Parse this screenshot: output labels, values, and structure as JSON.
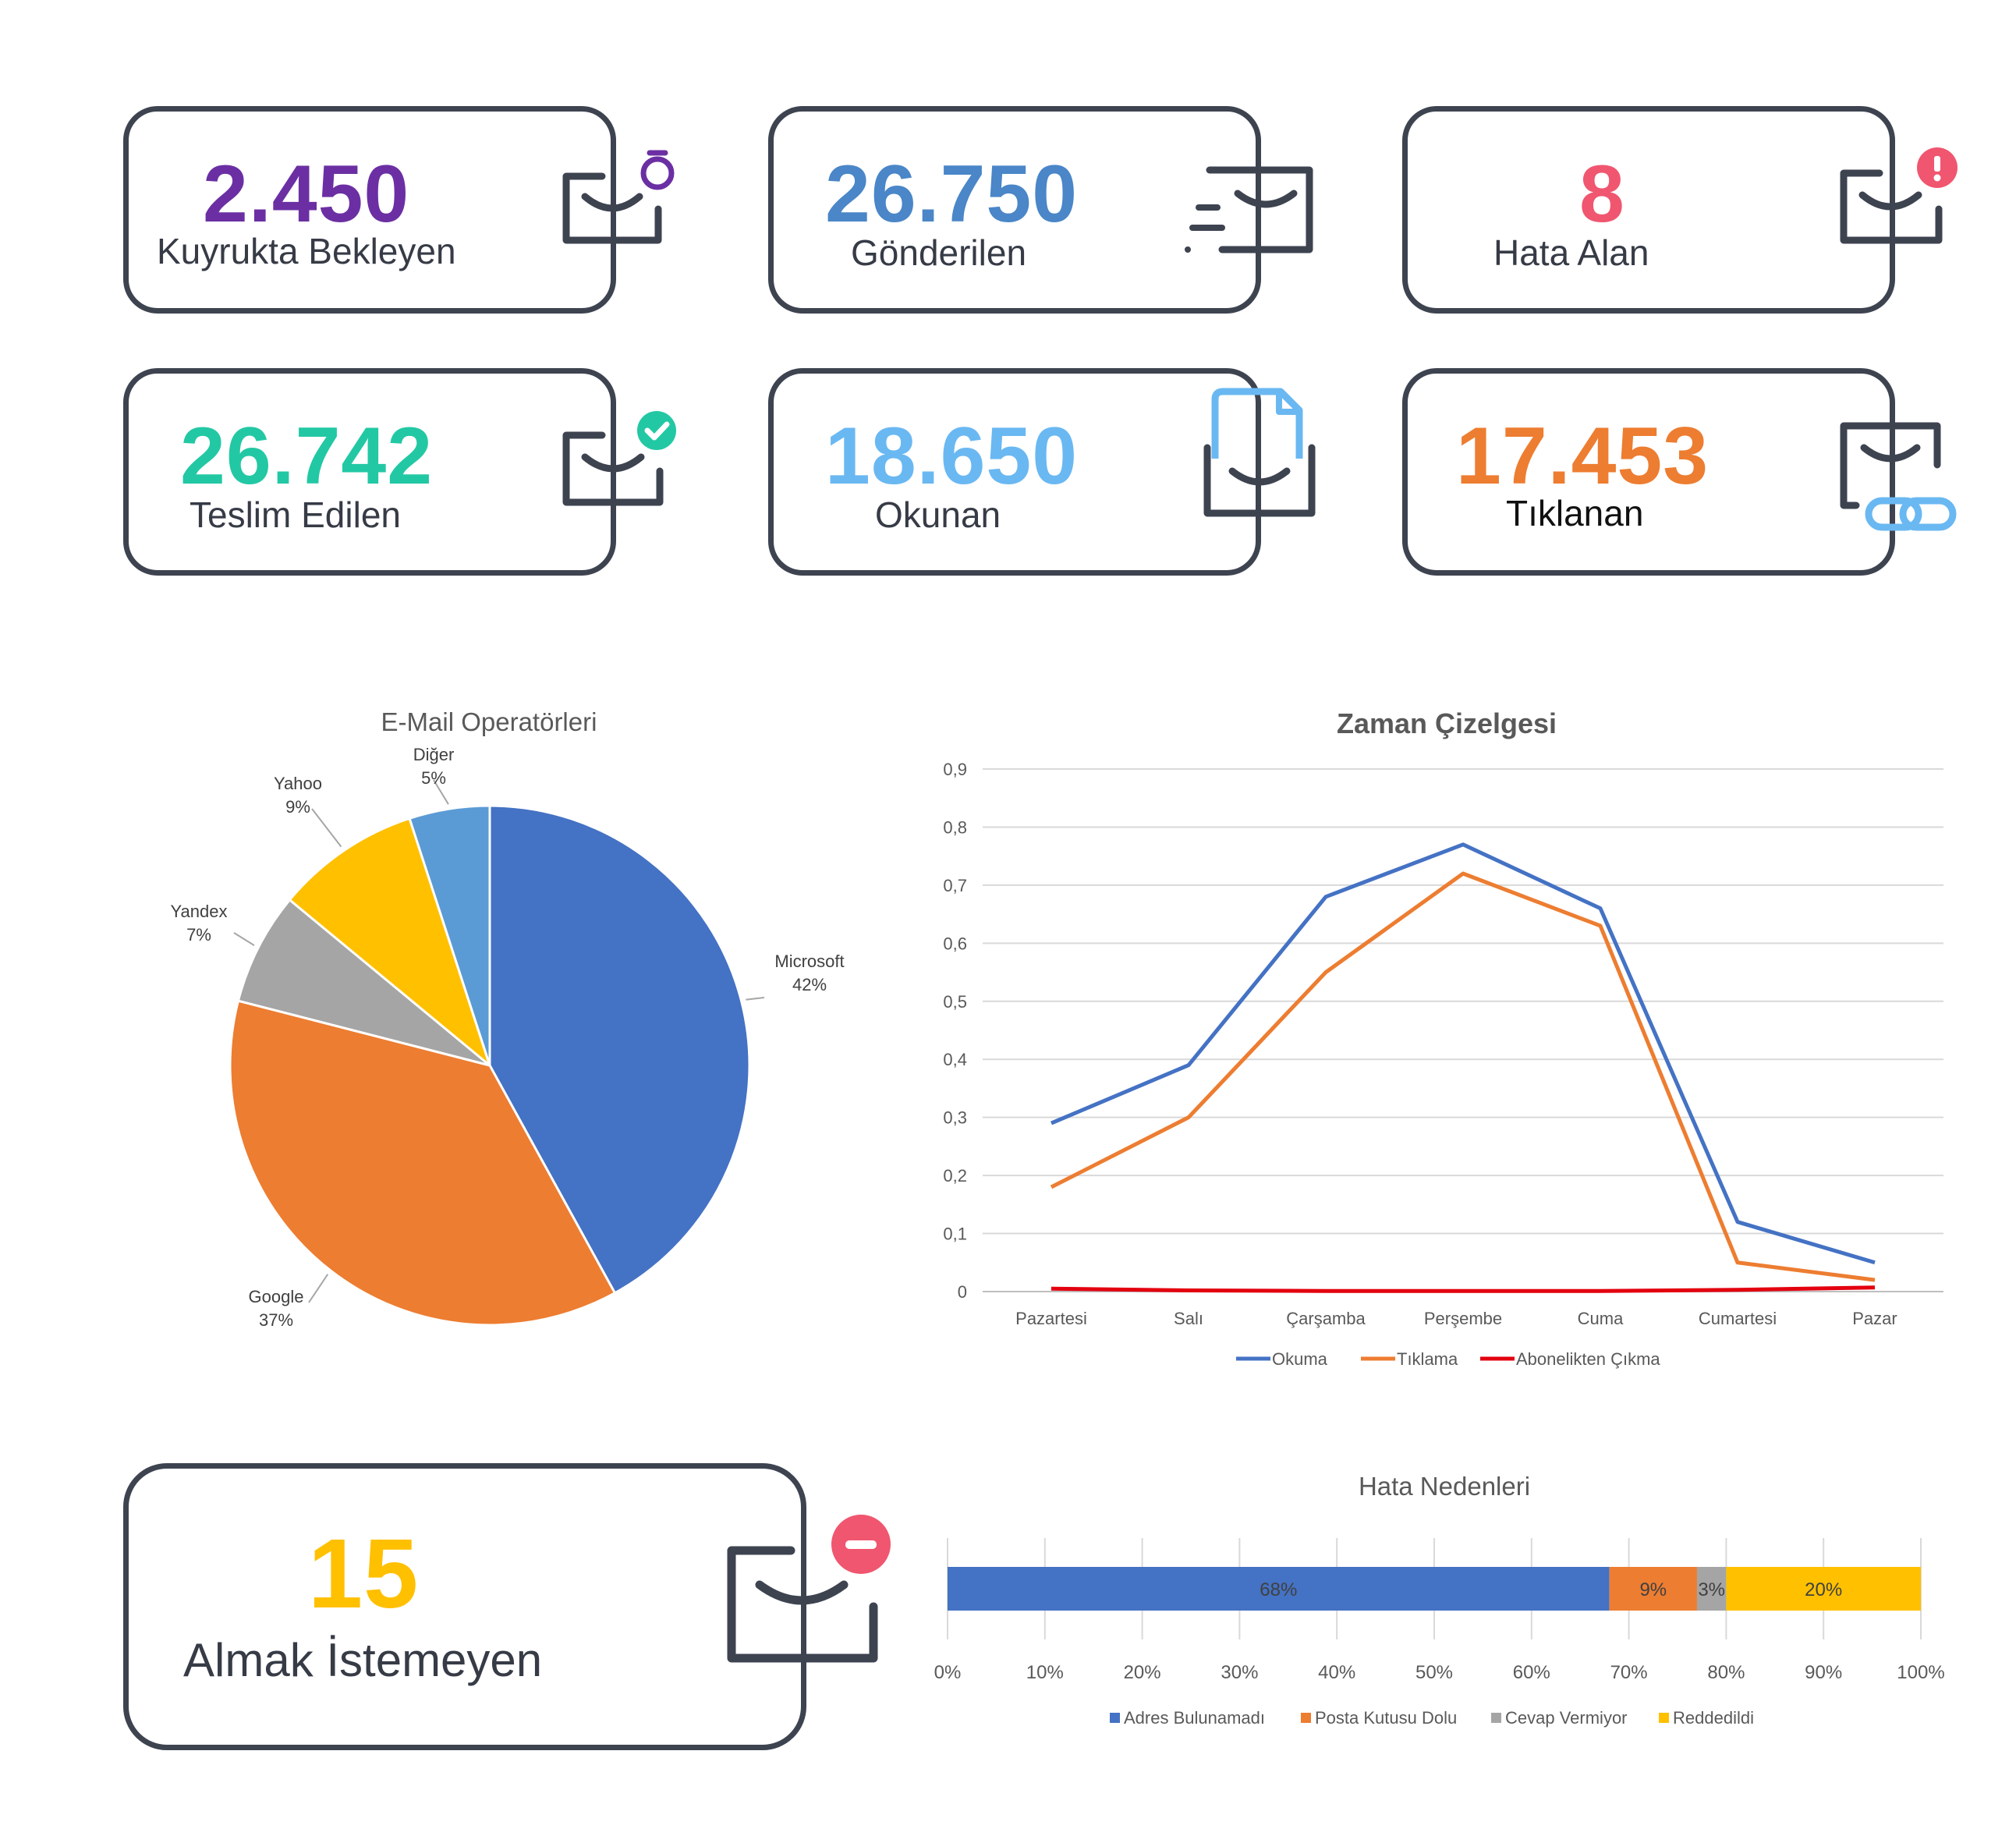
{
  "colors": {
    "border": "#3e4350",
    "purple": "#6b2fa3",
    "blue": "#4a86c8",
    "pink": "#f0566f",
    "teal": "#22c8a4",
    "lightblue": "#6ab8f2",
    "orange": "#ed7d31",
    "yellow": "#ffc000"
  },
  "cards": [
    {
      "value": "2.450",
      "label": "Kuyrukta Bekleyen",
      "icon": "envelope-timer-icon"
    },
    {
      "value": "26.750",
      "label": "Gönderilen",
      "icon": "envelope-send-icon"
    },
    {
      "value": "8",
      "label": "Hata Alan",
      "icon": "envelope-error-icon"
    },
    {
      "value": "26.742",
      "label": "Teslim Edilen",
      "icon": "envelope-check-icon"
    },
    {
      "value": "18.650",
      "label": "Okunan",
      "icon": "envelope-open-icon"
    },
    {
      "value": "17.453",
      "label": "Tıklanan",
      "icon": "envelope-link-icon"
    }
  ],
  "unsubscribe_card": {
    "value": "15",
    "label": "Almak İstemeyen",
    "icon": "envelope-minus-icon"
  },
  "chart_data": [
    {
      "type": "pie",
      "title": "E-Mail Operatörleri",
      "labels": [
        "Microsoft",
        "Google",
        "Yandex",
        "Yahoo",
        "Diğer"
      ],
      "values": [
        42,
        37,
        7,
        9,
        5
      ],
      "value_labels": [
        "42%",
        "37%",
        "7%",
        "9%",
        "5%"
      ],
      "colors": [
        "#4472c4",
        "#ed7d31",
        "#a5a5a5",
        "#ffc000",
        "#5b9bd5"
      ]
    },
    {
      "type": "line",
      "title": "Zaman Çizelgesi",
      "categories": [
        "Pazartesi",
        "Salı",
        "Çarşamba",
        "Perşembe",
        "Cuma",
        "Cumartesi",
        "Pazar"
      ],
      "ylim": [
        0,
        0.9
      ],
      "yticks": [
        "0",
        "0,1",
        "0,2",
        "0,3",
        "0,4",
        "0,5",
        "0,6",
        "0,7",
        "0,8",
        "0,9"
      ],
      "grid": true,
      "legend": "bottom",
      "series": [
        {
          "name": "Okuma",
          "color": "#4472c4",
          "values": [
            0.29,
            0.39,
            0.68,
            0.77,
            0.66,
            0.12,
            0.05
          ]
        },
        {
          "name": "Tıklama",
          "color": "#ed7d31",
          "values": [
            0.18,
            0.3,
            0.55,
            0.72,
            0.63,
            0.05,
            0.02
          ]
        },
        {
          "name": "Abonelikten Çıkma",
          "color": "#e3000f",
          "values": [
            0.005,
            0.002,
            0.001,
            0.001,
            0.001,
            0.003,
            0.007
          ]
        }
      ]
    },
    {
      "type": "bar",
      "orientation": "horizontal-stacked-percent",
      "title": "Hata Nedenleri",
      "xticks": [
        "0%",
        "10%",
        "20%",
        "30%",
        "40%",
        "50%",
        "60%",
        "70%",
        "80%",
        "90%",
        "100%"
      ],
      "legend": "bottom",
      "series": [
        {
          "name": "Adres Bulunamadı",
          "color": "#4472c4",
          "value": 68,
          "label": "68%"
        },
        {
          "name": "Posta Kutusu Dolu",
          "color": "#ed7d31",
          "value": 9,
          "label": "9%"
        },
        {
          "name": "Cevap Vermiyor",
          "color": "#a5a5a5",
          "value": 3,
          "label": "3%"
        },
        {
          "name": "Reddedildi",
          "color": "#ffc000",
          "value": 20,
          "label": "20%"
        }
      ]
    }
  ]
}
